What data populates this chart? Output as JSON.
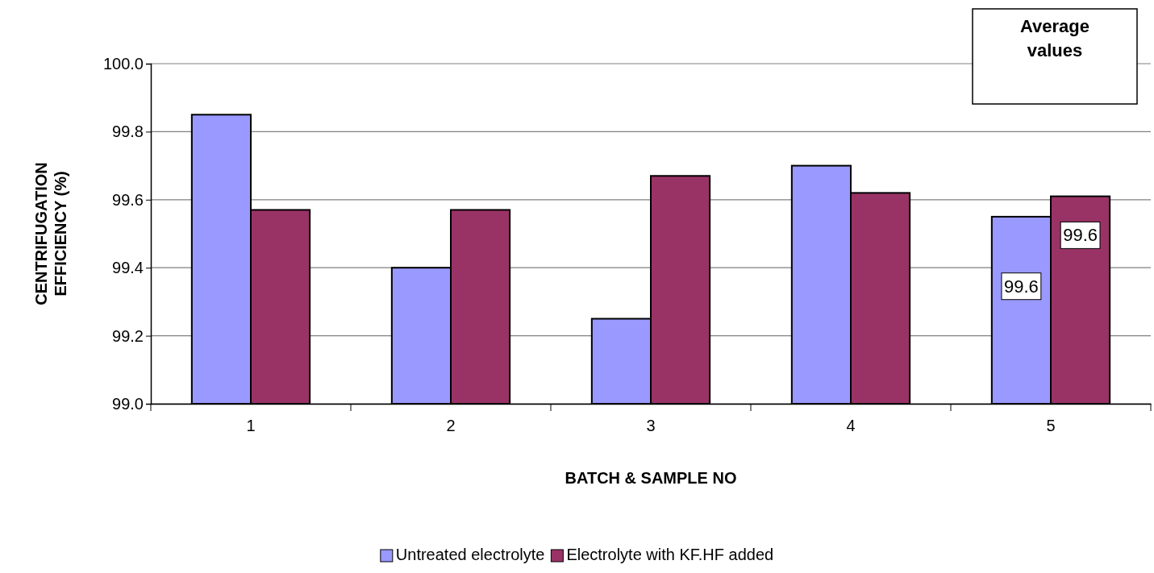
{
  "chart_data": {
    "type": "bar",
    "xlabel": "BATCH & SAMPLE NO",
    "ylabel": "CENTRIFUGATION EFFICIENCY (%)",
    "categories": [
      "1",
      "2",
      "3",
      "4",
      "5"
    ],
    "series": [
      {
        "name": "Untreated electrolyte",
        "color": "#9999ff",
        "values": [
          99.85,
          99.4,
          99.25,
          99.7,
          99.55
        ],
        "value_labels": [
          null,
          null,
          null,
          null,
          "99.6"
        ]
      },
      {
        "name": "Electrolyte with KF.HF added",
        "color": "#993366",
        "values": [
          99.57,
          99.57,
          99.67,
          99.62,
          99.61
        ],
        "value_labels": [
          null,
          null,
          null,
          null,
          "99.6"
        ]
      }
    ],
    "ylim": [
      99.0,
      100.0
    ],
    "yticks": [
      {
        "value": 99.0,
        "label": "99.0"
      },
      {
        "value": 99.2,
        "label": "99.2"
      },
      {
        "value": 99.4,
        "label": "99.4"
      },
      {
        "value": 99.6,
        "label": "99.6"
      },
      {
        "value": 99.8,
        "label": "99.8"
      },
      {
        "value": 100.0,
        "label": "100.0"
      }
    ],
    "grid": "y",
    "legend": "bottom",
    "annotations": [
      "Average values"
    ]
  }
}
